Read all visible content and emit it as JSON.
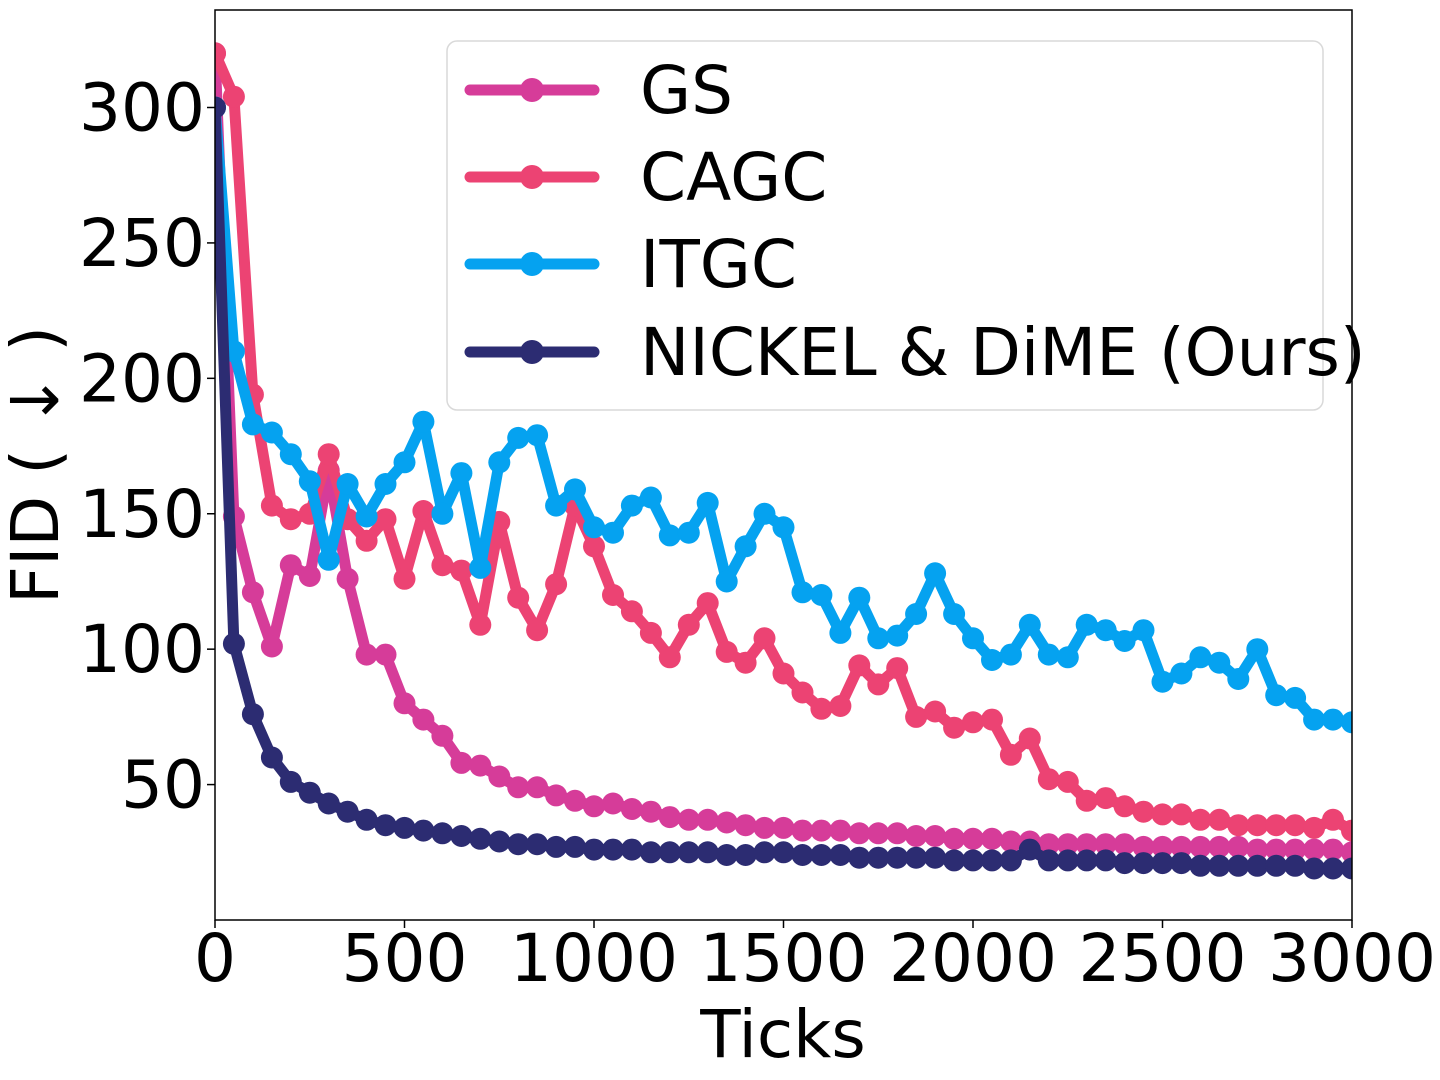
{
  "chart_data": {
    "type": "line",
    "title": "",
    "xlabel": "Ticks",
    "ylabel": "FID ( ↓ )",
    "xlim": [
      0,
      3000
    ],
    "ylim": [
      0,
      336
    ],
    "xticks": [
      0,
      500,
      1000,
      1500,
      2000,
      2500,
      3000
    ],
    "yticks": [
      50,
      100,
      150,
      200,
      250,
      300
    ],
    "xtick_labels": [
      "0",
      "500",
      "1000",
      "1500",
      "2000",
      "2500",
      "3000"
    ],
    "ytick_labels": [
      "50",
      "100",
      "150",
      "200",
      "250",
      "300"
    ],
    "grid": false,
    "legend_position": "top-right",
    "x": [
      0,
      50,
      100,
      150,
      200,
      250,
      300,
      350,
      400,
      450,
      500,
      550,
      600,
      650,
      700,
      750,
      800,
      850,
      900,
      950,
      1000,
      1050,
      1100,
      1150,
      1200,
      1250,
      1300,
      1350,
      1400,
      1450,
      1500,
      1550,
      1600,
      1650,
      1700,
      1750,
      1800,
      1850,
      1900,
      1950,
      2000,
      2050,
      2100,
      2150,
      2200,
      2250,
      2300,
      2350,
      2400,
      2450,
      2500,
      2550,
      2600,
      2650,
      2700,
      2750,
      2800,
      2850,
      2900,
      2950,
      3000
    ],
    "series": [
      {
        "name": "GS",
        "color": "#D63C99",
        "values": [
          320,
          149,
          121,
          101,
          131,
          127,
          166,
          126,
          98,
          98,
          80,
          74,
          68,
          58,
          57,
          53,
          49,
          49,
          46,
          44,
          42,
          43,
          41,
          40,
          38,
          37,
          37,
          36,
          35,
          34,
          34,
          33,
          33,
          33,
          32,
          32,
          32,
          31,
          31,
          30,
          30,
          30,
          29,
          29,
          28,
          28,
          28,
          28,
          28,
          27,
          27,
          27,
          27,
          27,
          27,
          26,
          26,
          26,
          26,
          26,
          25
        ]
      },
      {
        "name": "CAGC",
        "color": "#EC4373",
        "values": [
          320,
          304,
          194,
          153,
          148,
          150,
          172,
          148,
          140,
          148,
          126,
          151,
          131,
          129,
          109,
          147,
          119,
          107,
          124,
          153,
          138,
          120,
          114,
          106,
          97,
          109,
          117,
          99,
          95,
          104,
          91,
          84,
          78,
          79,
          94,
          87,
          93,
          75,
          77,
          71,
          73,
          74,
          61,
          67,
          52,
          51,
          44,
          45,
          42,
          40,
          39,
          39,
          37,
          37,
          35,
          35,
          35,
          35,
          34,
          37,
          33
        ]
      },
      {
        "name": "ITGC",
        "color": "#05A2F0",
        "values": [
          300,
          210,
          183,
          180,
          172,
          162,
          133,
          161,
          149,
          161,
          169,
          184,
          150,
          165,
          130,
          169,
          178,
          179,
          153,
          159,
          145,
          143,
          153,
          156,
          142,
          143,
          154,
          125,
          138,
          150,
          145,
          121,
          120,
          106,
          119,
          104,
          105,
          113,
          128,
          113,
          104,
          96,
          98,
          109,
          98,
          97,
          109,
          107,
          103,
          107,
          88,
          91,
          97,
          95,
          89,
          100,
          83,
          82,
          74,
          74,
          73
        ]
      },
      {
        "name": "NICKEL & DiME (Ours)",
        "color": "#2C2C72",
        "values": [
          300,
          102,
          76,
          60,
          51,
          47,
          43,
          40,
          37,
          35,
          34,
          33,
          32,
          31,
          30,
          29,
          28,
          28,
          27,
          27,
          26,
          26,
          26,
          25,
          25,
          25,
          25,
          24,
          24,
          25,
          25,
          24,
          24,
          24,
          23,
          23,
          23,
          23,
          23,
          22,
          22,
          22,
          22,
          26,
          22,
          22,
          22,
          22,
          21,
          21,
          21,
          21,
          20,
          20,
          20,
          20,
          20,
          20,
          19,
          19,
          19
        ]
      }
    ]
  }
}
